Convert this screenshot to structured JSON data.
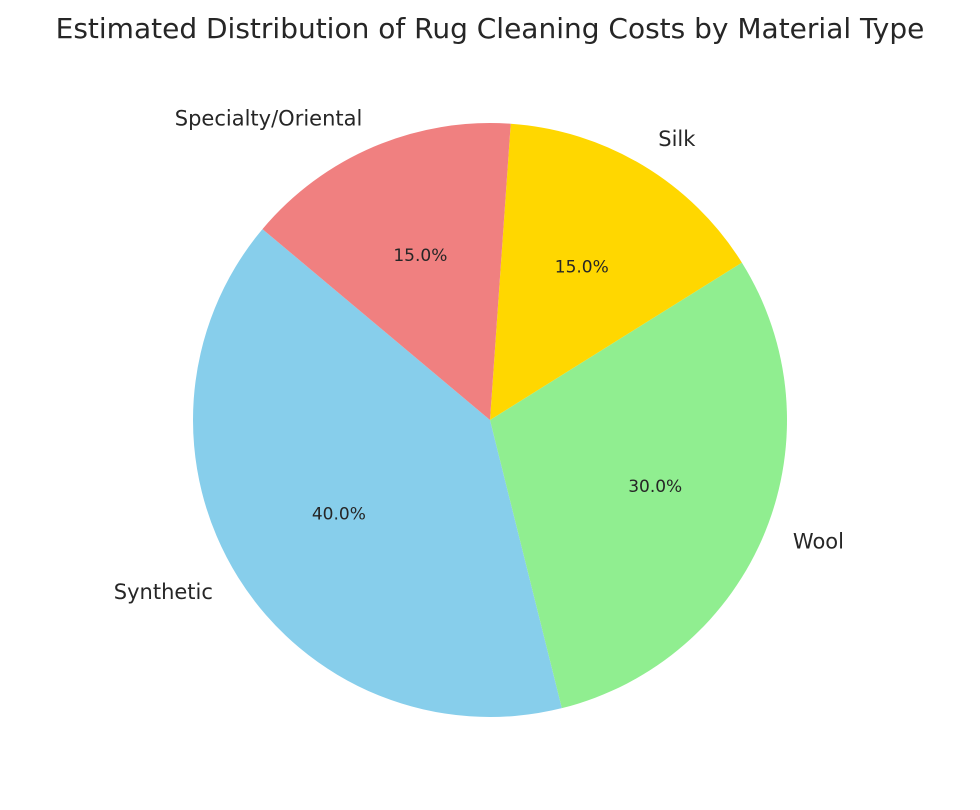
{
  "chart_data": {
    "type": "pie",
    "title": "Estimated Distribution of Rug Cleaning Costs by Material Type",
    "categories": [
      "Synthetic",
      "Wool",
      "Silk",
      "Specialty/Oriental"
    ],
    "values": [
      40.0,
      30.0,
      15.0,
      15.0
    ],
    "value_labels": [
      "40.0%",
      "30.0%",
      "15.0%",
      "15.0%"
    ],
    "colors": [
      "#87ceeb",
      "#90ee90",
      "#ffd700",
      "#f08080"
    ],
    "start_angle_deg": 140,
    "direction": "counterclockwise",
    "legend": "none"
  }
}
